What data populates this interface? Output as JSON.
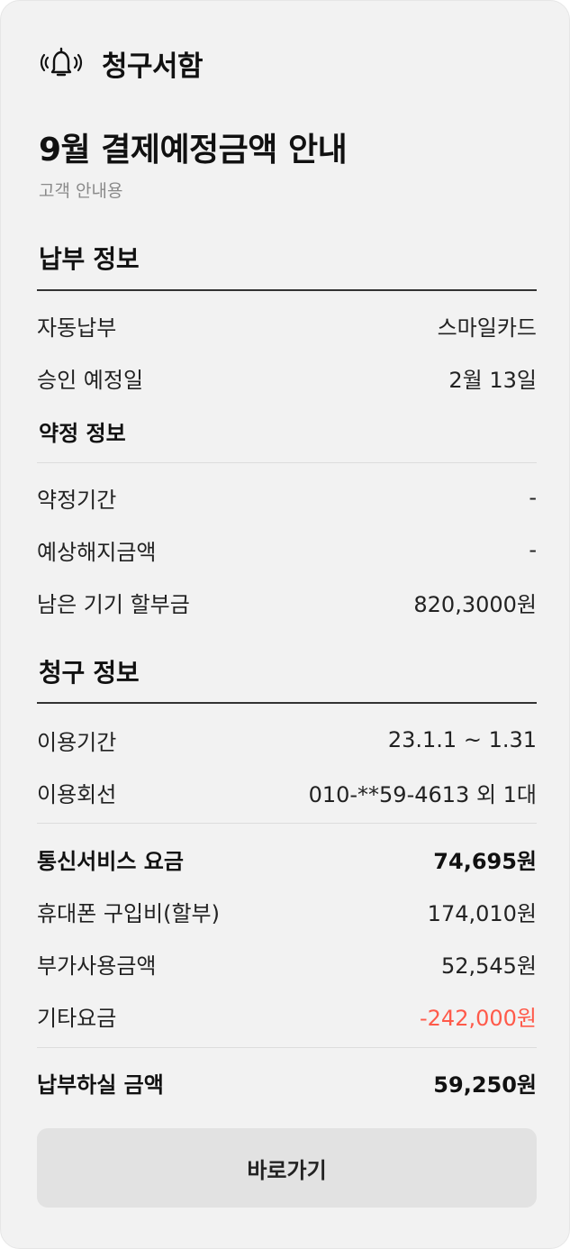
{
  "header": {
    "title": "청구서함",
    "icon": "bell-ringing-icon"
  },
  "page_title": "9월 결제예정금액 안내",
  "subtitle": "고객 안내용",
  "payment_info": {
    "title": "납부 정보",
    "rows": [
      {
        "label": "자동납부",
        "value": "스마일카드"
      },
      {
        "label": "승인 예정일",
        "value": "2월 13일"
      }
    ]
  },
  "contract_info": {
    "title": "약정 정보",
    "rows": [
      {
        "label": "약정기간",
        "value": "-"
      },
      {
        "label": "예상해지금액",
        "value": "-"
      },
      {
        "label": "남은 기기 할부금",
        "value": "820,3000원"
      }
    ]
  },
  "billing_info": {
    "title": "청구 정보",
    "rows": [
      {
        "label": "이용기간",
        "value": "23.1.1 ~ 1.31"
      },
      {
        "label": "이용회선",
        "value": "010-**59-4613 외 1대"
      }
    ],
    "charges": [
      {
        "label": "통신서비스 요금",
        "value": "74,695원"
      },
      {
        "label": "휴대폰 구입비(할부)",
        "value": "174,010원"
      },
      {
        "label": "부가사용금액",
        "value": "52,545원"
      },
      {
        "label": "기타요금",
        "value": "-242,000원"
      }
    ],
    "total": {
      "label": "납부하실 금액",
      "value": "59,250원"
    }
  },
  "go_button": "바로가기",
  "colors": {
    "card_bg": "#f2f2f2",
    "negative": "#ff5a4a",
    "button_bg": "#e2e2e2"
  }
}
